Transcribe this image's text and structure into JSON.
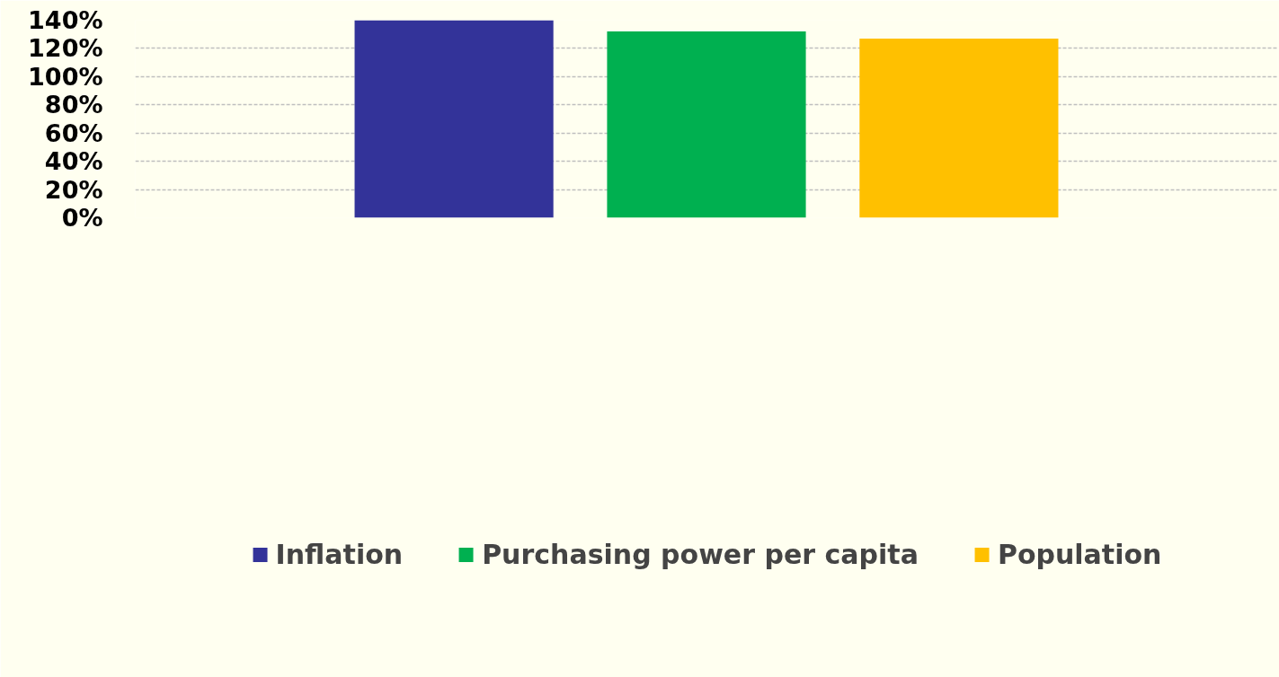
{
  "chart_data": {
    "type": "bar",
    "categories": [
      null
    ],
    "series": [
      {
        "name": "Inflation",
        "color": "#333399",
        "values": [
          140
        ]
      },
      {
        "name": "Purchasing power per capita",
        "color": "#00b050",
        "values": [
          132
        ]
      },
      {
        "name": "Population",
        "color": "#ffc000",
        "values": [
          127
        ]
      }
    ],
    "ylim": [
      0,
      140
    ],
    "yticks": [
      {
        "value": 0,
        "label": "0%"
      },
      {
        "value": 20,
        "label": "20%"
      },
      {
        "value": 40,
        "label": "40%"
      },
      {
        "value": 60,
        "label": "60%"
      },
      {
        "value": 80,
        "label": "80%"
      },
      {
        "value": 100,
        "label": "100%"
      },
      {
        "value": 120,
        "label": "120%"
      },
      {
        "value": 140,
        "label": "140%"
      }
    ],
    "grid": "y",
    "legend": "bottom"
  }
}
